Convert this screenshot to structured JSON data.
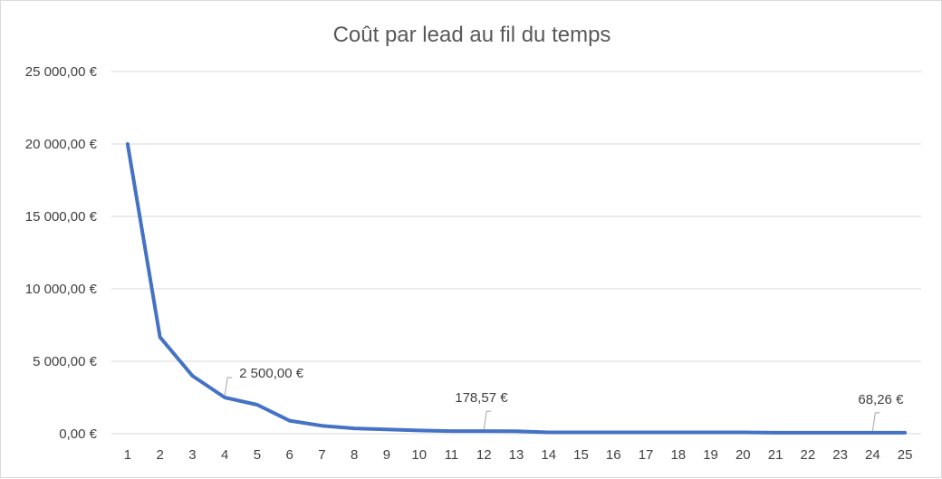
{
  "chart_data": {
    "type": "line",
    "title": "Coût par lead au fil du temps",
    "xlabel": "",
    "ylabel": "",
    "x": [
      1,
      2,
      3,
      4,
      5,
      6,
      7,
      8,
      9,
      10,
      11,
      12,
      13,
      14,
      15,
      16,
      17,
      18,
      19,
      20,
      21,
      22,
      23,
      24,
      25
    ],
    "x_tick_labels": [
      "1",
      "2",
      "3",
      "4",
      "5",
      "6",
      "7",
      "8",
      "9",
      "10",
      "11",
      "12",
      "13",
      "14",
      "15",
      "16",
      "17",
      "18",
      "19",
      "20",
      "21",
      "22",
      "23",
      "24",
      "25"
    ],
    "series": [
      {
        "color": "#4472c4",
        "values": [
          20000,
          6667,
          4000,
          2500,
          2000,
          900,
          550,
          370,
          300,
          230,
          182,
          178.57,
          170,
          95,
          90,
          90,
          90,
          90,
          90,
          90,
          70,
          70,
          70,
          68.26,
          68.26
        ]
      }
    ],
    "ylim": [
      0,
      25000
    ],
    "y_ticks": [
      0,
      5000,
      10000,
      15000,
      20000,
      25000
    ],
    "y_tick_labels": [
      "0,00 €",
      "5 000,00 €",
      "10 000,00 €",
      "15 000,00 €",
      "20 000,00 €",
      "25 000,00 €"
    ],
    "grid": true,
    "legend": "none",
    "data_labels": [
      {
        "x": 4,
        "text": "2 500,00 €"
      },
      {
        "x": 12,
        "text": "178,57 €"
      },
      {
        "x": 24,
        "text": "68,26 €"
      }
    ]
  }
}
